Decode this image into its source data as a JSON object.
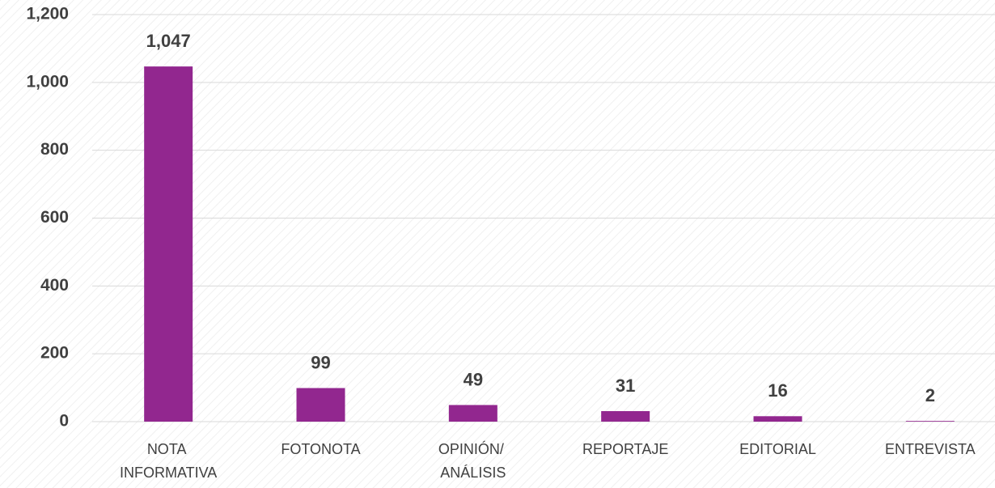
{
  "chart_data": {
    "type": "bar",
    "categories": [
      "NOTA INFORMATIVA",
      "FOTONOTA",
      "OPINIÓN/ ANÁLISIS",
      "REPORTAJE",
      "EDITORIAL",
      "ENTREVISTA"
    ],
    "values": [
      1047,
      99,
      49,
      31,
      16,
      2
    ],
    "value_labels": [
      "1,047",
      "99",
      "49",
      "31",
      "16",
      "2"
    ],
    "color": "#92278f",
    "ylim": [
      0,
      1200
    ],
    "yticks": [
      0,
      200,
      400,
      600,
      800,
      {
        "value": 1000,
        "label": "1,000"
      },
      {
        "value": 1200,
        "label": "1,200"
      }
    ],
    "grid": true
  }
}
